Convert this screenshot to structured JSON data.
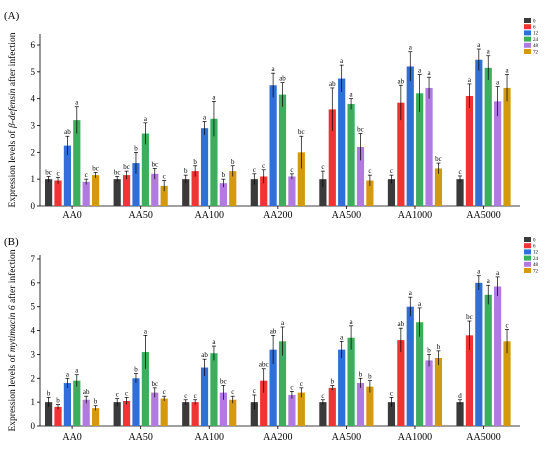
{
  "chart_data": [
    {
      "type": "bar",
      "panel_label": "(A)",
      "ylabel_parts": [
        "Expression levels of ",
        "β-defensin",
        " after infection"
      ],
      "ylim": [
        0,
        6
      ],
      "yticks": [
        "0",
        "1",
        "2",
        "3",
        "4",
        "5",
        "6"
      ],
      "grid": false,
      "legend_position": "top-right",
      "categories": [
        "AA0",
        "AA50",
        "AA100",
        "AA200",
        "AA500",
        "AA1000",
        "AA5000"
      ],
      "series": [
        {
          "name": "0",
          "color": "#3a3a3a",
          "values": [
            1.0,
            1.0,
            1.0,
            1.0,
            1.0,
            1.0,
            1.0
          ],
          "errors": [
            0.1,
            0.1,
            0.15,
            0.2,
            0.3,
            0.15,
            0.12
          ],
          "letters": [
            "bc",
            "bc",
            "b",
            "c",
            "c",
            "c",
            "c"
          ]
        },
        {
          "name": "6",
          "color": "#f03333",
          "values": [
            0.95,
            1.15,
            1.3,
            1.1,
            3.6,
            3.85,
            4.1
          ],
          "errors": [
            0.12,
            0.15,
            0.2,
            0.25,
            0.8,
            0.65,
            0.45
          ],
          "letters": [
            "c",
            "bc",
            "b",
            "c",
            "ab",
            "ab",
            "a"
          ]
        },
        {
          "name": "12",
          "color": "#2f6fd6",
          "values": [
            2.25,
            1.6,
            2.9,
            4.5,
            4.75,
            5.2,
            5.45
          ],
          "errors": [
            0.35,
            0.4,
            0.25,
            0.45,
            0.5,
            0.55,
            0.4
          ],
          "letters": [
            "ab",
            "b",
            "a",
            "a",
            "a",
            "a",
            "a"
          ]
        },
        {
          "name": "24",
          "color": "#3cae5e",
          "values": [
            3.2,
            2.7,
            3.25,
            4.15,
            3.8,
            4.2,
            5.15
          ],
          "errors": [
            0.5,
            0.4,
            0.65,
            0.45,
            0.2,
            0.7,
            0.45
          ],
          "letters": [
            "a",
            "a",
            "a",
            "ab",
            "a",
            "a",
            "a"
          ]
        },
        {
          "name": "48",
          "color": "#b07ae0",
          "values": [
            0.9,
            1.2,
            0.85,
            1.1,
            2.2,
            4.4,
            3.9
          ],
          "errors": [
            0.1,
            0.2,
            0.15,
            0.1,
            0.5,
            0.4,
            0.55
          ],
          "letters": [
            "c",
            "bc",
            "b",
            "c",
            "bc",
            "a",
            "a"
          ]
        },
        {
          "name": "72",
          "color": "#d39a10",
          "values": [
            1.15,
            0.75,
            1.3,
            2.0,
            0.95,
            1.4,
            4.4
          ],
          "errors": [
            0.1,
            0.2,
            0.2,
            0.6,
            0.2,
            0.2,
            0.5
          ],
          "letters": [
            "bc",
            "c",
            "b",
            "bc",
            "c",
            "bc",
            "a"
          ]
        }
      ]
    },
    {
      "type": "bar",
      "panel_label": "(B)",
      "ylabel_parts": [
        "Expression levels of ",
        "mytimacin 6",
        " after infection"
      ],
      "ylim": [
        0,
        7
      ],
      "yticks": [
        "0",
        "1",
        "2",
        "3",
        "4",
        "5",
        "6",
        "7"
      ],
      "grid": false,
      "legend_position": "top-right",
      "categories": [
        "AA0",
        "AA50",
        "AA100",
        "AA200",
        "AA500",
        "AA1000",
        "AA5000"
      ],
      "series": [
        {
          "name": "0",
          "color": "#3a3a3a",
          "values": [
            1.0,
            1.0,
            1.0,
            1.0,
            1.0,
            1.0,
            1.0
          ],
          "errors": [
            0.2,
            0.15,
            0.1,
            0.3,
            0.1,
            0.2,
            0.1
          ],
          "letters": [
            "b",
            "c",
            "c",
            "c",
            "c",
            "c",
            "d"
          ]
        },
        {
          "name": "6",
          "color": "#f03333",
          "values": [
            0.8,
            1.05,
            1.0,
            1.9,
            1.6,
            3.6,
            3.8
          ],
          "errors": [
            0.1,
            0.15,
            0.1,
            0.5,
            0.1,
            0.5,
            0.6
          ],
          "letters": [
            "b",
            "c",
            "c",
            "abc",
            "b",
            "ab",
            "bc"
          ]
        },
        {
          "name": "12",
          "color": "#2f6fd6",
          "values": [
            1.8,
            2.0,
            2.45,
            3.2,
            3.2,
            5.0,
            6.0
          ],
          "errors": [
            0.2,
            0.2,
            0.35,
            0.6,
            0.35,
            0.4,
            0.3
          ],
          "letters": [
            "a",
            "b",
            "ab",
            "ab",
            "a",
            "a",
            "a"
          ]
        },
        {
          "name": "24",
          "color": "#3cae5e",
          "values": [
            1.9,
            3.1,
            3.05,
            3.55,
            3.7,
            4.35,
            5.5
          ],
          "errors": [
            0.25,
            0.7,
            0.3,
            0.6,
            0.5,
            0.6,
            0.4
          ],
          "letters": [
            "a",
            "a",
            "a",
            "a",
            "a",
            "a",
            "a"
          ]
        },
        {
          "name": "48",
          "color": "#b07ae0",
          "values": [
            1.1,
            1.4,
            1.4,
            1.3,
            1.8,
            2.75,
            5.85
          ],
          "errors": [
            0.15,
            0.2,
            0.3,
            0.15,
            0.2,
            0.25,
            0.4
          ],
          "letters": [
            "ab",
            "bc",
            "bc",
            "c",
            "b",
            "b",
            "a"
          ]
        },
        {
          "name": "72",
          "color": "#d39a10",
          "values": [
            0.75,
            1.15,
            1.1,
            1.4,
            1.65,
            2.85,
            3.55
          ],
          "errors": [
            0.1,
            0.1,
            0.15,
            0.2,
            0.25,
            0.3,
            0.5
          ],
          "letters": [
            "b",
            "c",
            "c",
            "c",
            "b",
            "b",
            "c"
          ]
        }
      ]
    }
  ]
}
